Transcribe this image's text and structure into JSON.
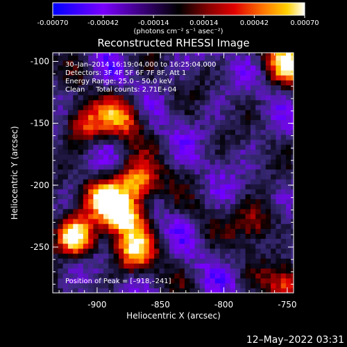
{
  "colorbar": {
    "ticks": [
      "-0.00070",
      "-0.00042",
      "-0.00014",
      "0.00014",
      "0.00042",
      "0.00070"
    ],
    "unit_label": "(photons cm⁻² s⁻¹ asec⁻²)"
  },
  "footer": {
    "timestamp": "12–May–2022 03:31"
  },
  "chart_data": {
    "type": "heatmap",
    "title": "Reconstructed RHESSI Image",
    "xlabel": "Heliocentric X (arcsec)",
    "ylabel": "Heliocentric Y (arcsec)",
    "xlim": [
      -935,
      -745
    ],
    "ylim": [
      -287,
      -93
    ],
    "x_ticks": [
      "-900",
      "-850",
      "-800",
      "-750"
    ],
    "y_ticks": [
      "-100",
      "-150",
      "-200",
      "-250"
    ],
    "x_tick_values": [
      -900,
      -850,
      -800,
      -750
    ],
    "y_tick_values": [
      -100,
      -150,
      -200,
      -250
    ],
    "value_range": [
      -0.0007,
      0.0007
    ],
    "colormap": [
      "#0000ff",
      "#7b00ff",
      "#3a2a7a",
      "#000000",
      "#8a0000",
      "#e00000",
      "#ff7a00",
      "#ffd000",
      "#ffffff"
    ],
    "annotations": [
      "30–Jan–2014 16:19:04.000 to 16:25:04.000",
      "Detectors: 3F 4F 5F 6F 7F 8F, Att 1",
      "Energy Range: 25.0 – 50.0 keV",
      "Clean     Total counts: 2.71E+04"
    ],
    "peak_label": "Position of Peak = [–918,–241]",
    "bright_sources": [
      {
        "x": -918,
        "y": -241,
        "value": 0.0007
      },
      {
        "x": -878,
        "y": -225,
        "value": 0.00062
      },
      {
        "x": -868,
        "y": -198,
        "value": 0.00058
      },
      {
        "x": -895,
        "y": -210,
        "value": 0.0005
      },
      {
        "x": -870,
        "y": -253,
        "value": 0.00045
      },
      {
        "x": -910,
        "y": -150,
        "value": 0.00035
      },
      {
        "x": -880,
        "y": -145,
        "value": 0.0003
      },
      {
        "x": -750,
        "y": -100,
        "value": 0.00055
      },
      {
        "x": -775,
        "y": -230,
        "value": 0.00022
      },
      {
        "x": -750,
        "y": -280,
        "value": 0.0003
      }
    ]
  }
}
